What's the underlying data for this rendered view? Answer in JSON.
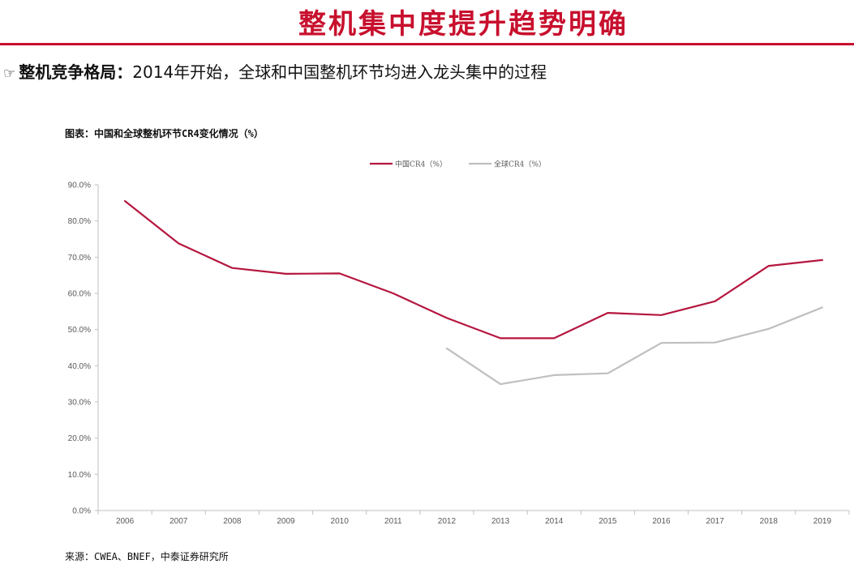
{
  "slide": {
    "title": "整机集中度提升趋势明确",
    "headline_icon": "pointing-hand-icon",
    "headline_lead": "整机竞争格局：",
    "headline_text": "2014年开始，全球和中国整机环节均进入龙头集中的过程",
    "chart_caption": "图表：中国和全球整机环节CR4变化情况（%）",
    "source": "来源：CWEA、BNEF，中泰证券研究所"
  },
  "colors": {
    "title": "#c8102e",
    "china": "#b5163f",
    "global": "#bfbfbf",
    "axis": "#bfbfbf"
  },
  "chart_data": {
    "type": "line",
    "categories": [
      "2006",
      "2007",
      "2008",
      "2009",
      "2010",
      "2011",
      "2012",
      "2013",
      "2014",
      "2015",
      "2016",
      "2017",
      "2018",
      "2019"
    ],
    "series": [
      {
        "name": "中国CR4（%）",
        "values": [
          85.5,
          73.8,
          67.0,
          65.4,
          65.5,
          60.0,
          53.2,
          47.6,
          47.6,
          54.6,
          54.0,
          57.8,
          67.6,
          69.2
        ]
      },
      {
        "name": "全球CR4（%）",
        "values": [
          null,
          null,
          null,
          null,
          null,
          null,
          44.8,
          34.9,
          37.4,
          37.9,
          46.3,
          46.4,
          50.2,
          56.1
        ]
      }
    ],
    "ylim": [
      0,
      90
    ],
    "yticks": [
      "0.0%",
      "10.0%",
      "20.0%",
      "30.0%",
      "40.0%",
      "50.0%",
      "60.0%",
      "70.0%",
      "80.0%",
      "90.0%"
    ],
    "grid": false,
    "legend_position": "top"
  }
}
